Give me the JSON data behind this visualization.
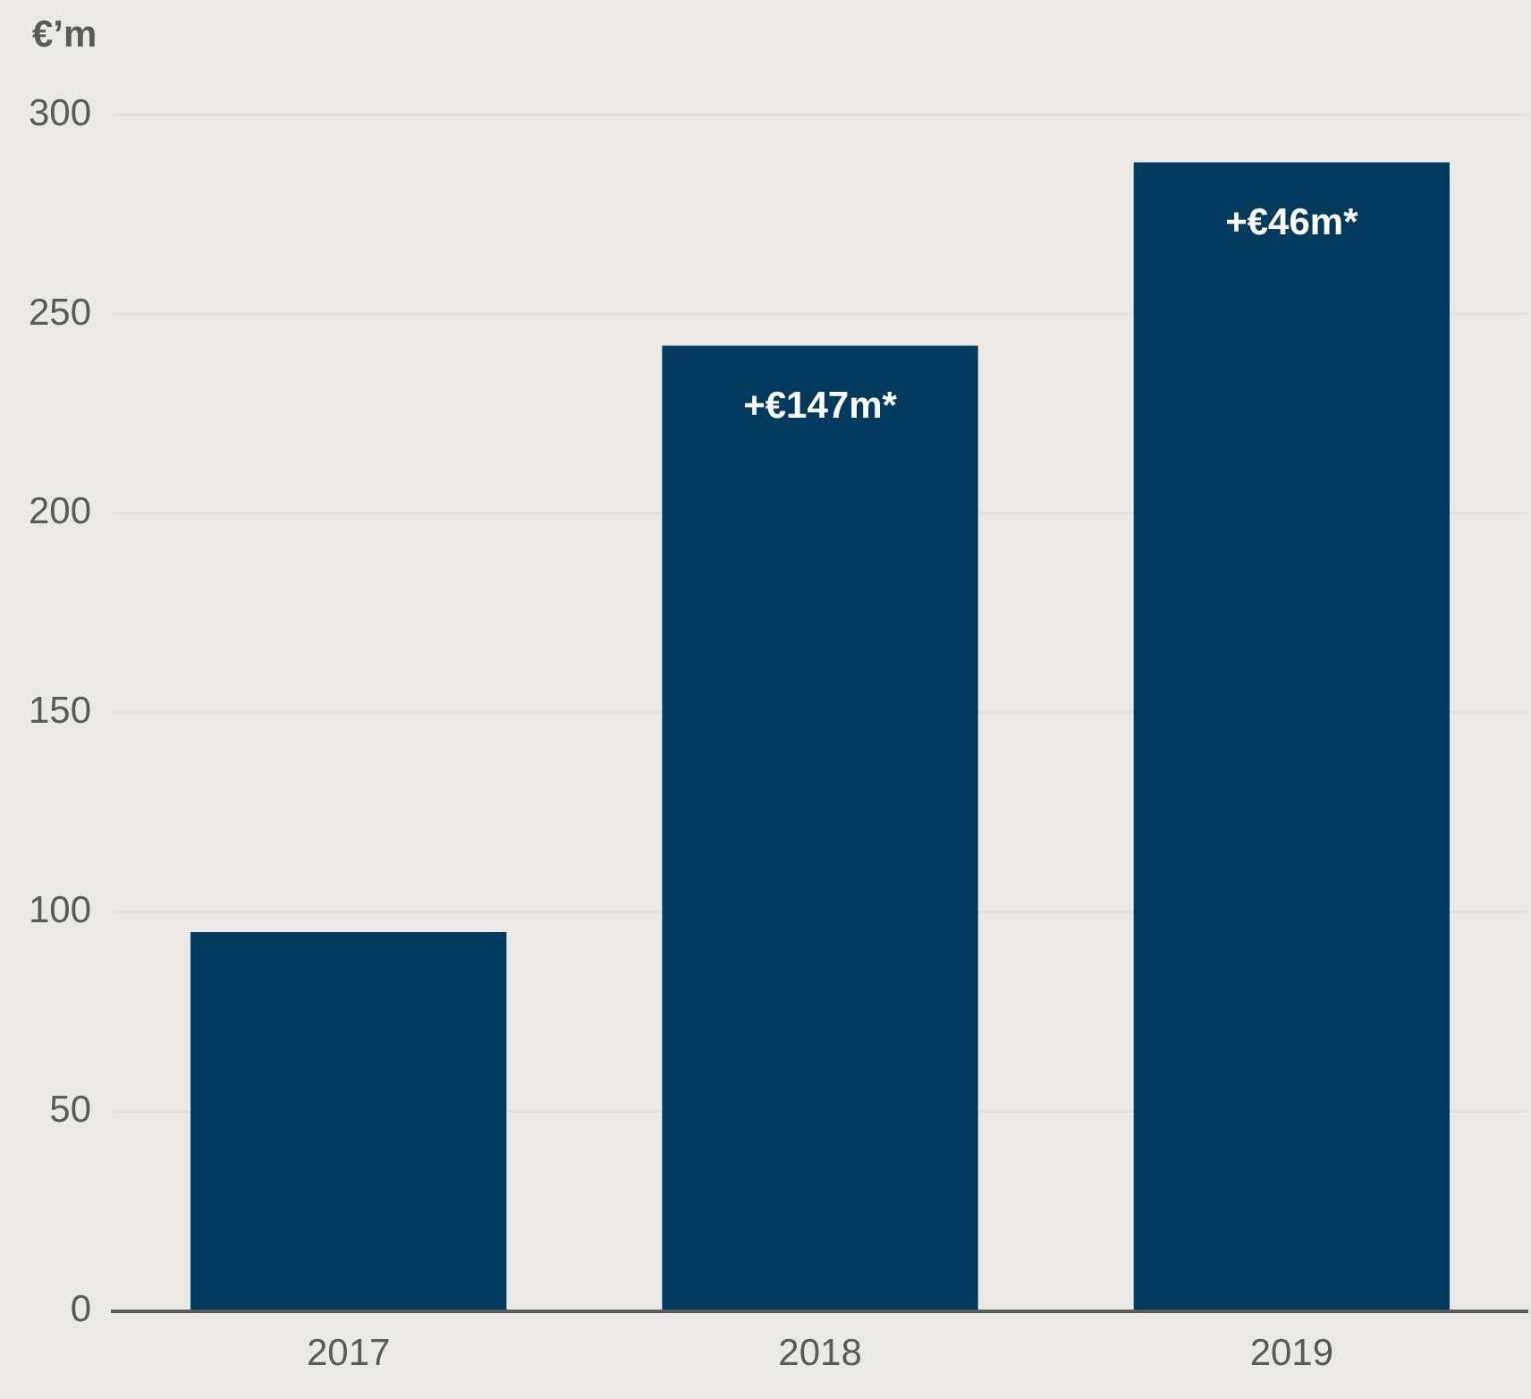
{
  "chart_data": {
    "type": "bar",
    "ylabel": "€’m",
    "categories": [
      "2017",
      "2018",
      "2019"
    ],
    "values": [
      95,
      242,
      288
    ],
    "color": "#003a5d",
    "ylim": [
      0,
      300
    ],
    "yticks": [
      0,
      50,
      100,
      150,
      200,
      250,
      300
    ],
    "grid": "y",
    "legend": false,
    "annotations": [
      {
        "text": "+€147m*",
        "x": "2018",
        "y": 242
      },
      {
        "text": "+€46m*",
        "x": "2019",
        "y": 288
      }
    ]
  }
}
